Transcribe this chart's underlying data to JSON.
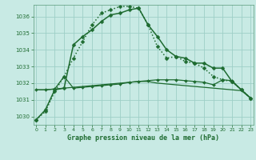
{
  "title": "Graphe pression niveau de la mer (hPa)",
  "background_color": "#c8eae4",
  "grid_color": "#9ecfc7",
  "line_color": "#1e6b30",
  "ylim": [
    1029.5,
    1036.7
  ],
  "yticks": [
    1030,
    1031,
    1032,
    1033,
    1034,
    1035,
    1036
  ],
  "xlim": [
    -0.3,
    23.3
  ],
  "xticks": [
    0,
    1,
    2,
    3,
    4,
    5,
    6,
    7,
    8,
    9,
    10,
    11,
    12,
    13,
    14,
    15,
    16,
    17,
    18,
    19,
    20,
    21,
    22,
    23
  ],
  "series": [
    {
      "name": "solid_high",
      "x": [
        0,
        1,
        2,
        3,
        4,
        5,
        6,
        7,
        8,
        9,
        10,
        11,
        12,
        13,
        14,
        15,
        16,
        17,
        18,
        19,
        20,
        21,
        22,
        23
      ],
      "y": [
        1029.8,
        1030.4,
        1031.6,
        1031.7,
        1034.3,
        1034.8,
        1035.2,
        1035.7,
        1036.1,
        1036.2,
        1036.4,
        1036.5,
        1035.5,
        1034.8,
        1034.0,
        1033.6,
        1033.5,
        1033.2,
        1033.2,
        1032.9,
        1032.9,
        1032.1,
        1031.6,
        1031.1
      ],
      "linestyle": "-",
      "marker": "D",
      "markersize": 2.5,
      "linewidth": 1.1
    },
    {
      "name": "dotted_high",
      "x": [
        0,
        1,
        2,
        3,
        4,
        5,
        6,
        7,
        8,
        9,
        10,
        11,
        12,
        13,
        14,
        15,
        16,
        17,
        18,
        19,
        20,
        21,
        22,
        23
      ],
      "y": [
        1029.8,
        1030.3,
        1031.5,
        1032.4,
        1033.5,
        1034.5,
        1035.5,
        1036.2,
        1036.4,
        1036.6,
        1036.6,
        1036.5,
        1035.5,
        1034.2,
        1033.5,
        1033.6,
        1033.3,
        1033.2,
        1032.9,
        1032.4,
        1032.2,
        1032.1,
        1031.6,
        1031.1
      ],
      "linestyle": ":",
      "marker": "D",
      "markersize": 2.5,
      "linewidth": 1.1
    },
    {
      "name": "solid_flat_rising",
      "x": [
        0,
        1,
        2,
        3,
        4,
        5,
        6,
        7,
        8,
        9,
        10,
        11,
        12,
        13,
        14,
        15,
        16,
        17,
        18,
        19,
        20,
        21,
        22,
        23
      ],
      "y": [
        1031.6,
        1031.6,
        1031.65,
        1032.4,
        1031.7,
        1031.75,
        1031.8,
        1031.85,
        1031.9,
        1031.95,
        1032.05,
        1032.1,
        1032.15,
        1032.2,
        1032.2,
        1032.2,
        1032.15,
        1032.1,
        1032.05,
        1031.9,
        1032.2,
        1032.15,
        1031.6,
        1031.1
      ],
      "linestyle": "-",
      "marker": "D",
      "markersize": 2.0,
      "linewidth": 0.9
    },
    {
      "name": "solid_flat_decreasing",
      "x": [
        0,
        1,
        2,
        3,
        4,
        5,
        6,
        7,
        8,
        9,
        10,
        11,
        12,
        13,
        14,
        15,
        16,
        17,
        18,
        19,
        20,
        21,
        22,
        23
      ],
      "y": [
        1031.6,
        1031.6,
        1031.65,
        1031.7,
        1031.75,
        1031.8,
        1031.85,
        1031.9,
        1031.95,
        1032.0,
        1032.05,
        1032.1,
        1032.1,
        1032.0,
        1031.95,
        1031.9,
        1031.85,
        1031.8,
        1031.75,
        1031.7,
        1031.65,
        1031.6,
        1031.55,
        1031.1
      ],
      "linestyle": "-",
      "marker": null,
      "markersize": 0,
      "linewidth": 0.9
    }
  ]
}
